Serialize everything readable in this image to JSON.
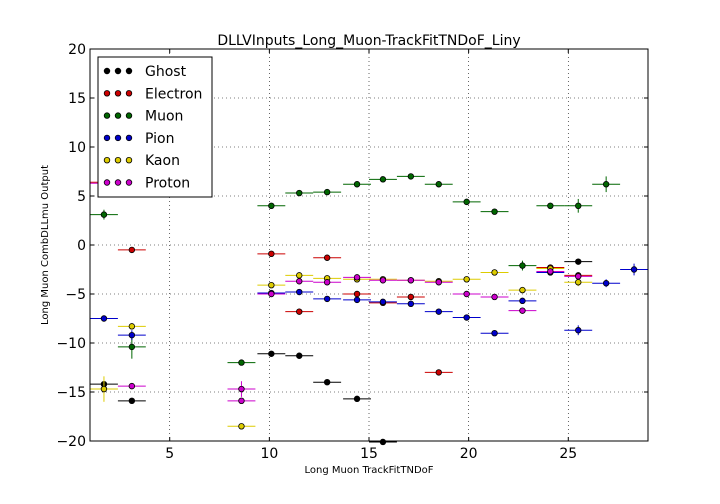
{
  "chart_data": {
    "type": "scatter",
    "title": "DLLVInputs_Long_Muon-TrackFitTNDoF_Liny",
    "xlabel": "Long Muon TrackFitTNDoF",
    "ylabel": "Long Muon CombDLLmu Output",
    "xlim": [
      1,
      29
    ],
    "ylim": [
      -20,
      20
    ],
    "xticks": [
      5,
      10,
      15,
      20,
      25
    ],
    "xtick_labels": [
      "5",
      "10",
      "15",
      "20",
      "25"
    ],
    "yticks": [
      -20,
      -15,
      -10,
      -5,
      0,
      5,
      10,
      15,
      20
    ],
    "ytick_labels": [
      "−20",
      "−15",
      "−10",
      "−5",
      "0",
      "5",
      "10",
      "15",
      "20"
    ],
    "grid": true,
    "legend_position": "top-left",
    "x_error_halfwidth": 0.7,
    "series": [
      {
        "name": "Ghost",
        "color": "#000000",
        "x": [
          1.7,
          3.1,
          10.1,
          11.5,
          12.9,
          14.4,
          15.7,
          25.5
        ],
        "y": [
          -14.2,
          -15.9,
          -11.1,
          -11.3,
          -14.0,
          -15.7,
          -20.1,
          -1.7
        ],
        "yerr": [
          0.3,
          0.2,
          0.2,
          0.2,
          0.2,
          0.2,
          0.2,
          0.2
        ]
      },
      {
        "name": "Electron",
        "color": "#cc0000",
        "x": [
          1.7,
          3.1,
          10.1,
          12.9,
          11.5,
          14.4,
          15.7,
          17.1,
          18.5,
          24.1,
          25.5
        ],
        "y": [
          6.4,
          -0.5,
          -0.9,
          -1.3,
          -6.8,
          -5.0,
          -5.9,
          -5.3,
          -13.0,
          -2.3,
          -3.1
        ],
        "yerr": [
          0.2,
          0.2,
          0.2,
          0.2,
          0.3,
          0.2,
          0.2,
          0.2,
          0.2,
          0.3,
          0.3
        ]
      },
      {
        "name": "Muon",
        "color": "#006600",
        "x": [
          1.7,
          3.1,
          8.6,
          10.1,
          11.5,
          12.9,
          14.4,
          15.7,
          17.1,
          18.5,
          19.9,
          21.3,
          22.7,
          24.1,
          25.5,
          26.9
        ],
        "y": [
          3.1,
          -10.4,
          -12.0,
          4.0,
          5.3,
          5.4,
          6.2,
          6.7,
          7.0,
          6.2,
          4.4,
          3.4,
          -2.1,
          4.0,
          4.0,
          6.2
        ],
        "yerr": [
          0.5,
          1.2,
          0.2,
          0.2,
          0.2,
          0.2,
          0.2,
          0.2,
          0.2,
          0.2,
          0.2,
          0.2,
          0.5,
          0.3,
          0.7,
          0.8
        ]
      },
      {
        "name": "Pion",
        "color": "#0000cc",
        "x": [
          1.7,
          3.1,
          10.1,
          11.5,
          12.9,
          14.4,
          15.7,
          17.1,
          18.5,
          19.9,
          21.3,
          22.7,
          24.1,
          25.5,
          26.9,
          28.3
        ],
        "y": [
          -7.5,
          -9.2,
          -4.9,
          -4.8,
          -5.5,
          -5.6,
          -5.8,
          -6.0,
          -6.8,
          -7.4,
          -9.0,
          -5.7,
          -2.8,
          -8.7,
          -3.9,
          -2.5
        ],
        "yerr": [
          0.2,
          0.5,
          0.2,
          0.2,
          0.2,
          0.2,
          0.2,
          0.2,
          0.2,
          0.2,
          0.2,
          0.3,
          0.3,
          0.5,
          0.4,
          0.6
        ]
      },
      {
        "name": "Kaon",
        "color": "#ddcc00",
        "x": [
          1.7,
          3.1,
          8.6,
          10.1,
          11.5,
          12.9,
          14.4,
          15.7,
          17.1,
          18.5,
          19.9,
          21.3,
          22.7,
          24.1,
          25.5
        ],
        "y": [
          -14.7,
          -8.3,
          -18.5,
          -4.1,
          -3.1,
          -3.4,
          -3.5,
          -3.5,
          -3.6,
          -3.7,
          -3.5,
          -2.8,
          -4.6,
          -2.4,
          -3.8
        ],
        "yerr": [
          1.3,
          0.3,
          0.2,
          0.2,
          0.2,
          0.2,
          0.2,
          0.2,
          0.2,
          0.2,
          0.2,
          0.2,
          0.2,
          0.3,
          0.4
        ]
      },
      {
        "name": "Proton",
        "color": "#cc00cc",
        "x": [
          1.7,
          3.1,
          8.6,
          8.6,
          10.1,
          11.5,
          12.9,
          14.4,
          15.7,
          17.1,
          18.5,
          19.9,
          21.3,
          22.7,
          24.1,
          25.5
        ],
        "y": [
          6.3,
          -14.4,
          -14.7,
          -15.9,
          -5.0,
          -3.7,
          -3.8,
          -3.3,
          -3.6,
          -3.6,
          -3.8,
          -5.0,
          -5.3,
          -6.7,
          -2.7,
          -3.2
        ],
        "yerr": [
          0.2,
          0.2,
          0.8,
          0.3,
          0.2,
          0.2,
          0.2,
          0.2,
          0.2,
          0.2,
          0.2,
          0.2,
          0.2,
          0.3,
          0.3,
          0.3
        ]
      }
    ]
  }
}
